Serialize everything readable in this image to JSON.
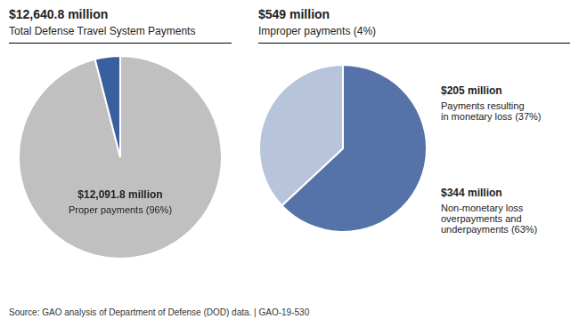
{
  "chart_data": [
    {
      "type": "pie",
      "title": "$12,640.8 million",
      "subtitle": "Total Defense Travel System Payments",
      "values": [
        96,
        4
      ],
      "colors": [
        "#c0c0c0",
        "#3a5f9e"
      ],
      "annotations": [
        "$12,091.8 million",
        "Proper payments (96%)",
        "Source: GAO analysis of Department of Defense (DOD) data.  |  GAO-19-530"
      ]
    },
    {
      "type": "pie",
      "title": "$549 million",
      "subtitle": "Improper payments (4%)",
      "values": [
        63,
        37
      ],
      "colors": [
        "#5573a8",
        "#b8c4dc"
      ],
      "annotations": [
        "$344 million",
        "Non-monetary loss\noverpayments and\nunderpayments (63%)",
        "$205 million",
        "Payments resulting\nin monetary loss (37%)"
      ]
    }
  ]
}
